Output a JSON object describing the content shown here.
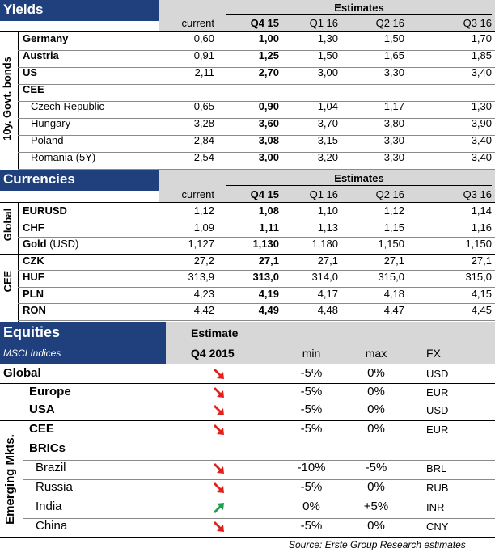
{
  "yields": {
    "title": "Yields",
    "estimates_label": "Estimates",
    "side_label": "10y. Govt. bonds",
    "columns": [
      "current",
      "Q4 15",
      "Q1 16",
      "Q2 16",
      "Q3 16"
    ],
    "rows": [
      {
        "label": "Germany",
        "values": [
          "0,60",
          "1,00",
          "1,30",
          "1,50",
          "1,70"
        ]
      },
      {
        "label": "Austria",
        "values": [
          "0,91",
          "1,25",
          "1,50",
          "1,65",
          "1,85"
        ]
      },
      {
        "label": "US",
        "values": [
          "2,11",
          "2,70",
          "3,00",
          "3,30",
          "3,40"
        ]
      }
    ],
    "group_label": "CEE",
    "cee_rows": [
      {
        "label": "Czech Republic",
        "values": [
          "0,65",
          "0,90",
          "1,04",
          "1,17",
          "1,30"
        ]
      },
      {
        "label": "Hungary",
        "values": [
          "3,28",
          "3,60",
          "3,70",
          "3,80",
          "3,90"
        ]
      },
      {
        "label": "Poland",
        "values": [
          "2,84",
          "3,08",
          "3,15",
          "3,30",
          "3,40"
        ]
      },
      {
        "label": "Romania (5Y)",
        "values": [
          "2,54",
          "3,00",
          "3,20",
          "3,30",
          "3,40"
        ]
      }
    ]
  },
  "currencies": {
    "title": "Currencies",
    "estimates_label": "Estimates",
    "columns": [
      "current",
      "Q4 15",
      "Q1 16",
      "Q2 16",
      "Q3 16"
    ],
    "global_label": "Global",
    "cee_label": "CEE",
    "global_rows": [
      {
        "label": "EURUSD",
        "unit": "",
        "values": [
          "1,12",
          "1,08",
          "1,10",
          "1,12",
          "1,14"
        ]
      },
      {
        "label": "CHF",
        "unit": "",
        "values": [
          "1,09",
          "1,11",
          "1,13",
          "1,15",
          "1,16"
        ]
      },
      {
        "label": "Gold",
        "unit": "(USD)",
        "values": [
          "1,127",
          "1,130",
          "1,180",
          "1,150",
          "1,150"
        ]
      }
    ],
    "cee_rows": [
      {
        "label": "CZK",
        "values": [
          "27,2",
          "27,1",
          "27,1",
          "27,1",
          "27,1"
        ]
      },
      {
        "label": "HUF",
        "values": [
          "313,9",
          "313,0",
          "314,0",
          "315,0",
          "315,0"
        ]
      },
      {
        "label": "PLN",
        "values": [
          "4,23",
          "4,19",
          "4,17",
          "4,18",
          "4,15"
        ]
      },
      {
        "label": "RON",
        "values": [
          "4,42",
          "4,49",
          "4,48",
          "4,47",
          "4,45"
        ]
      }
    ]
  },
  "equities": {
    "title": "Equities",
    "subtitle": "MSCI Indices",
    "estimate_label": "Estimate",
    "period_label": "Q4 2015",
    "col_min": "min",
    "col_max": "max",
    "col_fx": "FX",
    "side_label": "Emerging Mkts.",
    "global_row": {
      "label": "Global",
      "trend": "down",
      "min": "-5%",
      "max": "0%",
      "fx": "USD"
    },
    "dm_rows": [
      {
        "label": "Europe",
        "trend": "down",
        "min": "-5%",
        "max": "0%",
        "fx": "EUR"
      },
      {
        "label": "USA",
        "trend": "down",
        "min": "-5%",
        "max": "0%",
        "fx": "USD"
      }
    ],
    "cee_row": {
      "label": "CEE",
      "trend": "down",
      "min": "-5%",
      "max": "0%",
      "fx": "EUR"
    },
    "brics_label": "BRICs",
    "brics_rows": [
      {
        "label": "Brazil",
        "trend": "down",
        "min": "-10%",
        "max": "-5%",
        "fx": "BRL"
      },
      {
        "label": "Russia",
        "trend": "down",
        "min": "-5%",
        "max": "0%",
        "fx": "RUB"
      },
      {
        "label": "India",
        "trend": "up",
        "min": "0%",
        "max": "+5%",
        "fx": "INR"
      },
      {
        "label": "China",
        "trend": "down",
        "min": "-5%",
        "max": "0%",
        "fx": "CNY"
      }
    ]
  },
  "source": "Source: Erste Group Research estimates",
  "colors": {
    "header_blue": "#1f3f7d",
    "header_gray": "#d7d7d7",
    "arrow_down": "#e2211c",
    "arrow_up": "#1fa050"
  }
}
